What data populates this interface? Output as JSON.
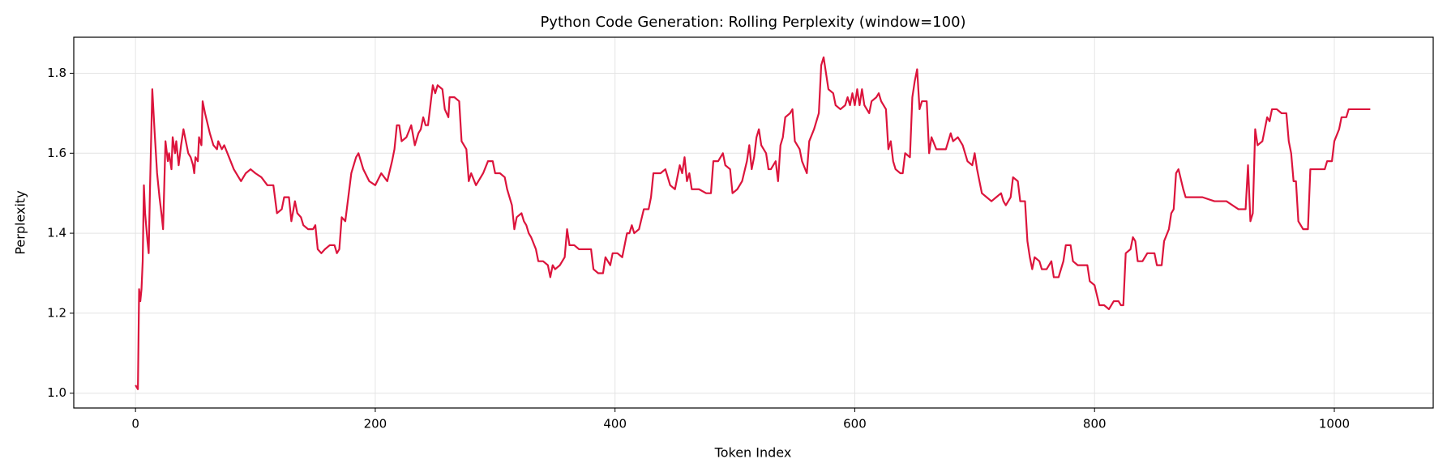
{
  "chart_data": {
    "type": "line",
    "title": "Python Code Generation: Rolling Perplexity (window=100)",
    "x_label": "Token Index",
    "y_label": "Perplexity",
    "xlim": [
      -51.5,
      1082.5
    ],
    "ylim": [
      0.963,
      1.89
    ],
    "xticks": [
      0,
      200,
      400,
      600,
      800,
      1000
    ],
    "yticks": [
      {
        "value": 1.0,
        "label": "1.0"
      },
      1.2,
      1.4,
      1.6,
      1.8
    ],
    "grid": true,
    "series": [
      {
        "color": "#dc143c",
        "x": [
          0,
          2,
          3,
          4,
          5,
          6,
          7,
          8,
          10,
          11,
          12,
          14,
          16,
          18,
          20,
          22,
          23,
          25,
          27,
          28,
          30,
          31,
          33,
          34,
          36,
          38,
          40,
          42,
          44,
          46,
          48,
          49,
          50,
          52,
          53,
          55,
          56,
          58,
          62,
          65,
          68,
          69,
          72,
          74,
          78,
          82,
          86,
          88,
          92,
          96,
          100,
          105,
          110,
          115,
          118,
          122,
          124,
          128,
          130,
          133,
          135,
          138,
          140,
          144,
          148,
          150,
          152,
          155,
          158,
          162,
          166,
          168,
          170,
          172,
          175,
          180,
          184,
          186,
          190,
          195,
          200,
          205,
          210,
          214,
          216,
          218,
          220,
          222,
          226,
          230,
          233,
          236,
          238,
          240,
          242,
          244,
          246,
          248,
          250,
          252,
          256,
          258,
          261,
          262,
          266,
          270,
          272,
          276,
          278,
          280,
          284,
          288,
          290,
          294,
          298,
          300,
          304,
          308,
          310,
          314,
          316,
          318,
          322,
          324,
          326,
          328,
          330,
          334,
          336,
          340,
          344,
          346,
          348,
          350,
          354,
          358,
          360,
          362,
          366,
          370,
          376,
          380,
          382,
          386,
          390,
          392,
          396,
          398,
          402,
          406,
          410,
          412,
          414,
          416,
          420,
          424,
          428,
          430,
          432,
          438,
          442,
          446,
          450,
          454,
          456,
          458,
          460,
          462,
          464,
          470,
          476,
          480,
          482,
          486,
          490,
          492,
          496,
          498,
          502,
          506,
          510,
          512,
          514,
          516,
          518,
          520,
          522,
          526,
          528,
          530,
          534,
          536,
          538,
          540,
          542,
          546,
          548,
          550,
          554,
          556,
          560,
          562,
          566,
          570,
          572,
          574,
          576,
          578,
          582,
          584,
          588,
          592,
          594,
          596,
          598,
          600,
          602,
          604,
          606,
          608,
          610,
          612,
          614,
          618,
          620,
          622,
          626,
          628,
          630,
          632,
          634,
          638,
          640,
          642,
          646,
          648,
          650,
          652,
          654,
          656,
          660,
          662,
          664,
          668,
          672,
          676,
          680,
          682,
          686,
          690,
          694,
          698,
          700,
          702,
          706,
          710,
          714,
          718,
          722,
          724,
          726,
          730,
          732,
          736,
          738,
          742,
          744,
          746,
          748,
          750,
          754,
          756,
          760,
          764,
          766,
          770,
          774,
          776,
          780,
          782,
          786,
          790,
          794,
          796,
          800,
          804,
          808,
          812,
          816,
          820,
          822,
          824,
          826,
          830,
          832,
          834,
          836,
          840,
          844,
          850,
          852,
          856,
          858,
          862,
          864,
          866,
          868,
          870,
          874,
          876,
          880,
          890,
          900,
          910,
          920,
          926,
          928,
          930,
          932,
          934,
          936,
          940,
          944,
          946,
          948,
          952,
          956,
          960,
          962,
          964,
          966,
          968,
          970,
          974,
          978,
          980,
          986,
          992,
          994,
          998,
          1000,
          1004,
          1006,
          1010,
          1012,
          1018,
          1020,
          1025,
          1030
        ],
        "values": [
          1.02,
          1.01,
          1.26,
          1.23,
          1.26,
          1.33,
          1.52,
          1.45,
          1.38,
          1.35,
          1.5,
          1.76,
          1.65,
          1.55,
          1.49,
          1.44,
          1.41,
          1.63,
          1.58,
          1.6,
          1.56,
          1.64,
          1.6,
          1.63,
          1.57,
          1.62,
          1.66,
          1.63,
          1.6,
          1.59,
          1.57,
          1.55,
          1.59,
          1.58,
          1.64,
          1.62,
          1.73,
          1.7,
          1.65,
          1.62,
          1.61,
          1.63,
          1.61,
          1.62,
          1.59,
          1.56,
          1.54,
          1.53,
          1.55,
          1.56,
          1.55,
          1.54,
          1.52,
          1.52,
          1.45,
          1.46,
          1.49,
          1.49,
          1.43,
          1.48,
          1.45,
          1.44,
          1.42,
          1.41,
          1.41,
          1.42,
          1.36,
          1.35,
          1.36,
          1.37,
          1.37,
          1.35,
          1.36,
          1.44,
          1.43,
          1.55,
          1.59,
          1.6,
          1.56,
          1.53,
          1.52,
          1.55,
          1.53,
          1.58,
          1.61,
          1.67,
          1.67,
          1.63,
          1.64,
          1.67,
          1.62,
          1.65,
          1.66,
          1.69,
          1.67,
          1.67,
          1.72,
          1.77,
          1.75,
          1.77,
          1.76,
          1.71,
          1.69,
          1.74,
          1.74,
          1.73,
          1.63,
          1.61,
          1.53,
          1.55,
          1.52,
          1.54,
          1.55,
          1.58,
          1.58,
          1.55,
          1.55,
          1.54,
          1.51,
          1.47,
          1.41,
          1.44,
          1.45,
          1.43,
          1.42,
          1.4,
          1.39,
          1.36,
          1.33,
          1.33,
          1.32,
          1.29,
          1.32,
          1.31,
          1.32,
          1.34,
          1.41,
          1.37,
          1.37,
          1.36,
          1.36,
          1.36,
          1.31,
          1.3,
          1.3,
          1.34,
          1.32,
          1.35,
          1.35,
          1.34,
          1.4,
          1.4,
          1.42,
          1.4,
          1.41,
          1.46,
          1.46,
          1.49,
          1.55,
          1.55,
          1.56,
          1.52,
          1.51,
          1.57,
          1.55,
          1.59,
          1.53,
          1.55,
          1.51,
          1.51,
          1.5,
          1.5,
          1.58,
          1.58,
          1.6,
          1.57,
          1.56,
          1.5,
          1.51,
          1.53,
          1.58,
          1.62,
          1.56,
          1.59,
          1.64,
          1.66,
          1.62,
          1.6,
          1.56,
          1.56,
          1.58,
          1.53,
          1.62,
          1.64,
          1.69,
          1.7,
          1.71,
          1.63,
          1.61,
          1.58,
          1.55,
          1.63,
          1.66,
          1.7,
          1.82,
          1.84,
          1.8,
          1.76,
          1.75,
          1.72,
          1.71,
          1.72,
          1.74,
          1.72,
          1.75,
          1.72,
          1.76,
          1.72,
          1.76,
          1.72,
          1.71,
          1.7,
          1.73,
          1.74,
          1.75,
          1.73,
          1.71,
          1.61,
          1.63,
          1.58,
          1.56,
          1.55,
          1.55,
          1.6,
          1.59,
          1.74,
          1.78,
          1.81,
          1.71,
          1.73,
          1.73,
          1.6,
          1.64,
          1.61,
          1.61,
          1.61,
          1.65,
          1.63,
          1.64,
          1.62,
          1.58,
          1.57,
          1.6,
          1.56,
          1.5,
          1.49,
          1.48,
          1.49,
          1.5,
          1.48,
          1.47,
          1.49,
          1.54,
          1.53,
          1.48,
          1.48,
          1.38,
          1.34,
          1.31,
          1.34,
          1.33,
          1.31,
          1.31,
          1.33,
          1.29,
          1.29,
          1.33,
          1.37,
          1.37,
          1.33,
          1.32,
          1.32,
          1.32,
          1.28,
          1.27,
          1.22,
          1.22,
          1.21,
          1.23,
          1.23,
          1.22,
          1.22,
          1.35,
          1.36,
          1.39,
          1.38,
          1.33,
          1.33,
          1.35,
          1.35,
          1.32,
          1.32,
          1.38,
          1.41,
          1.45,
          1.46,
          1.55,
          1.56,
          1.51,
          1.49,
          1.49,
          1.49,
          1.48,
          1.48,
          1.46,
          1.46,
          1.57,
          1.43,
          1.45,
          1.66,
          1.62,
          1.63,
          1.69,
          1.68,
          1.71,
          1.71,
          1.7,
          1.7,
          1.63,
          1.6,
          1.53,
          1.53,
          1.43,
          1.41,
          1.41,
          1.56,
          1.56,
          1.56,
          1.58,
          1.58,
          1.63,
          1.66,
          1.69,
          1.69,
          1.71,
          1.71,
          1.71,
          1.71,
          1.71
        ]
      }
    ]
  }
}
